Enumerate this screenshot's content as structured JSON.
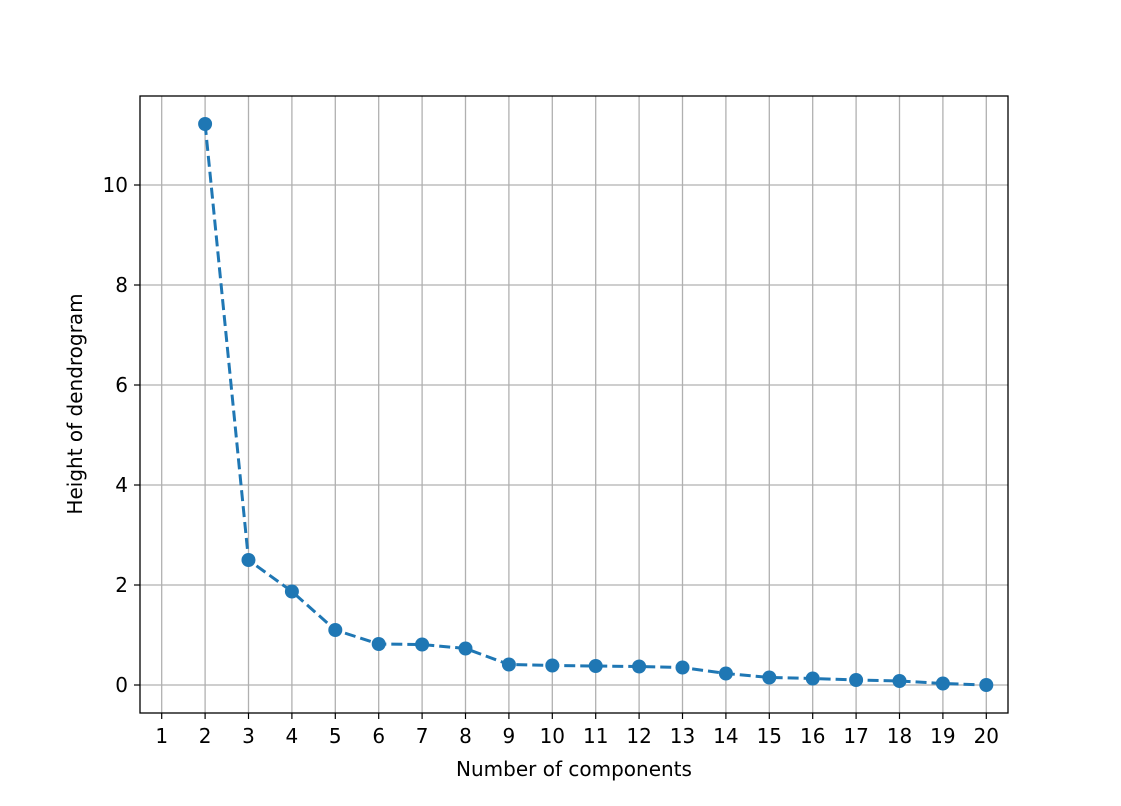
{
  "chart_data": {
    "type": "line",
    "title": "",
    "xlabel": "Number of components",
    "ylabel": "Height of dendrogram",
    "x": [
      2,
      3,
      4,
      5,
      6,
      7,
      8,
      9,
      10,
      11,
      12,
      13,
      14,
      15,
      16,
      17,
      18,
      19,
      20
    ],
    "y": [
      11.22,
      2.5,
      1.87,
      1.1,
      0.82,
      0.81,
      0.73,
      0.41,
      0.39,
      0.38,
      0.37,
      0.35,
      0.23,
      0.15,
      0.13,
      0.1,
      0.08,
      0.03,
      0.0
    ],
    "xlim": [
      0.5,
      20.5
    ],
    "ylim": [
      -0.56,
      11.78
    ],
    "xticks": [
      1,
      2,
      3,
      4,
      5,
      6,
      7,
      8,
      9,
      10,
      11,
      12,
      13,
      14,
      15,
      16,
      17,
      18,
      19,
      20
    ],
    "yticks": [
      0,
      2,
      4,
      6,
      8,
      10
    ],
    "grid": true,
    "line_style": "dashed",
    "marker": "circle",
    "color": "#1f77b4"
  }
}
